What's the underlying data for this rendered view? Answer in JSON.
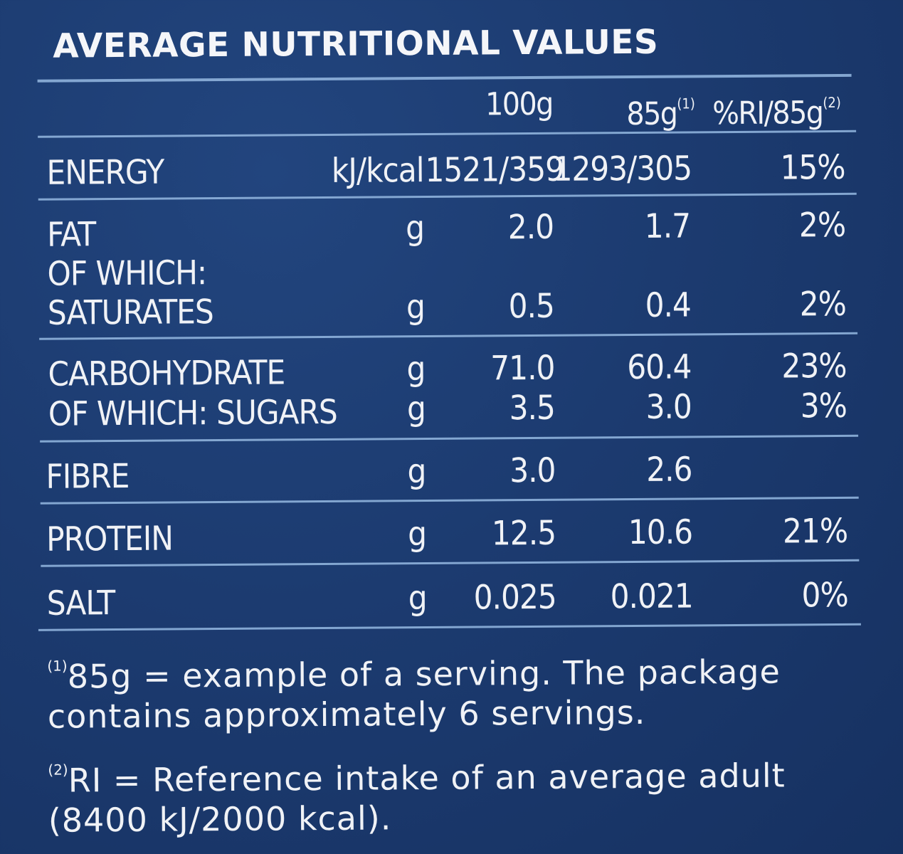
{
  "title": "AVERAGE NUTRITIONAL VALUES",
  "columns": {
    "per100": "100g",
    "perServing": "85g",
    "perServingNote": "(1)",
    "ri": "%RI/85g",
    "riNote": "(2)"
  },
  "rows": {
    "energy": {
      "label": "ENERGY",
      "unit": "kJ/kcal",
      "per100": "1521/359",
      "perServing": "1293/305",
      "ri": "15%"
    },
    "fat": {
      "label": "FAT",
      "unit": "g",
      "per100": "2.0",
      "perServing": "1.7",
      "ri": "2%"
    },
    "ofWhich": {
      "label": "OF WHICH:"
    },
    "saturates": {
      "label": "SATURATES",
      "unit": "g",
      "per100": "0.5",
      "perServing": "0.4",
      "ri": "2%"
    },
    "carbohydrate": {
      "label": "CARBOHYDRATE",
      "unit": "g",
      "per100": "71.0",
      "perServing": "60.4",
      "ri": "23%"
    },
    "sugars": {
      "label": "OF WHICH: SUGARS",
      "unit": "g",
      "per100": "3.5",
      "perServing": "3.0",
      "ri": "3%"
    },
    "fibre": {
      "label": "FIBRE",
      "unit": "g",
      "per100": "3.0",
      "perServing": "2.6",
      "ri": ""
    },
    "protein": {
      "label": "PROTEIN",
      "unit": "g",
      "per100": "12.5",
      "perServing": "10.6",
      "ri": "21%"
    },
    "salt": {
      "label": "SALT",
      "unit": "g",
      "per100": "0.025",
      "perServing": "0.021",
      "ri": "0%"
    }
  },
  "footnotes": {
    "note1Marker": "(1)",
    "note1Line1": "85g = example of a serving. The package",
    "note1Line2": "contains approximately 6 servings.",
    "note2Marker": "(2)",
    "note2Line1": "RI = Reference intake of an average adult",
    "note2Line2": "(8400 kJ/2000 kcal)."
  },
  "colors": {
    "background": "#1c3b70",
    "text": "#f0f2f6",
    "rule": "#8fb3dc"
  }
}
